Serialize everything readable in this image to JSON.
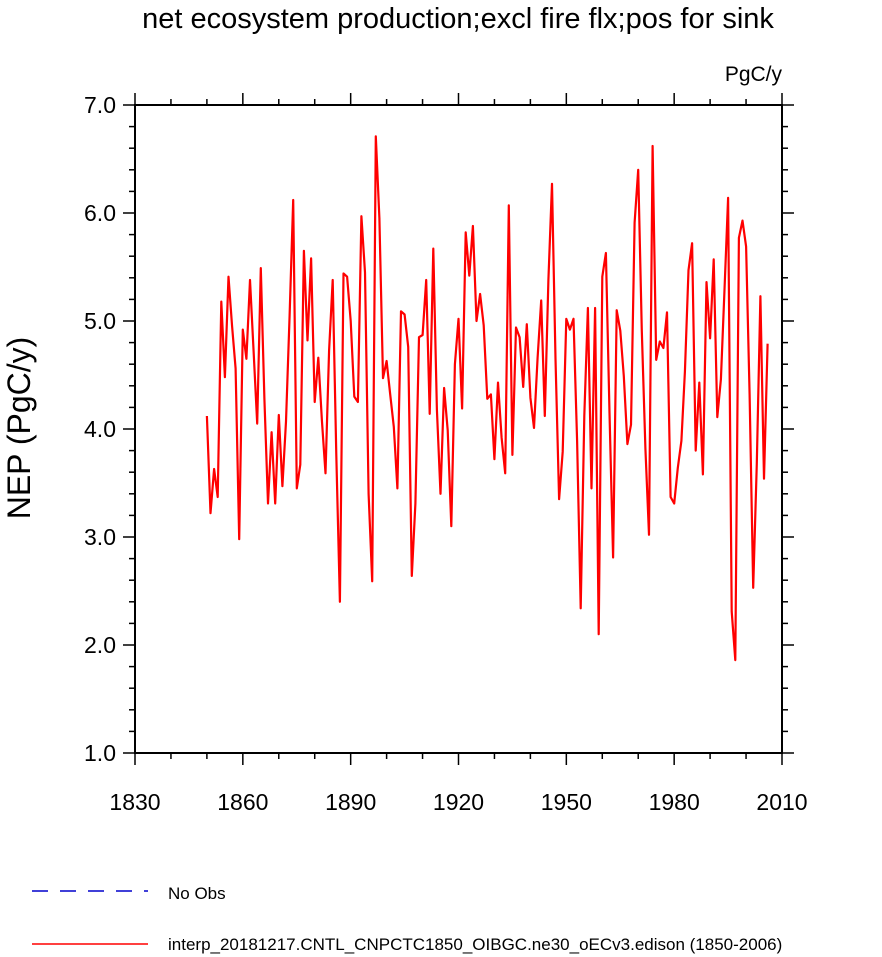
{
  "chart_data": {
    "type": "line",
    "title": "net ecosystem production;excl fire flx;pos for sink",
    "units": "PgC/y",
    "ylabel": "NEP  (PgC/y)",
    "xlabel": "",
    "xlim": [
      1830,
      2010
    ],
    "ylim": [
      1.0,
      7.0
    ],
    "xticks": [
      1830,
      1860,
      1890,
      1920,
      1950,
      1980,
      2010
    ],
    "xtick_labels": [
      "1830",
      "1860",
      "1890",
      "1920",
      "1950",
      "1980",
      "2010"
    ],
    "yticks": [
      1.0,
      2.0,
      3.0,
      4.0,
      5.0,
      6.0,
      7.0
    ],
    "ytick_labels": [
      "1.0",
      "2.0",
      "3.0",
      "4.0",
      "5.0",
      "6.0",
      "7.0"
    ],
    "legend_position": "bottom-left",
    "series": [
      {
        "name": "interp_20181217.CNTL_CNPCTC1850_OIBGC.ne30_oECv3.edison (1850-2006)",
        "color": "#ff0000",
        "style": "solid",
        "x_start": 1850,
        "x_step": 1,
        "values": [
          4.12,
          3.22,
          3.63,
          3.37,
          5.18,
          4.48,
          5.41,
          4.95,
          4.56,
          2.98,
          4.92,
          4.65,
          5.38,
          4.72,
          4.05,
          5.49,
          4.28,
          3.31,
          3.97,
          3.31,
          4.13,
          3.47,
          4.07,
          5.05,
          6.12,
          3.45,
          3.67,
          5.65,
          4.82,
          5.58,
          4.25,
          4.66,
          4.08,
          3.59,
          4.73,
          5.38,
          3.76,
          2.4,
          5.44,
          5.41,
          5.0,
          4.3,
          4.25,
          5.97,
          5.45,
          3.4,
          2.59,
          6.71,
          5.95,
          4.47,
          4.63,
          4.32,
          4.02,
          3.45,
          5.09,
          5.06,
          4.76,
          2.64,
          3.31,
          4.85,
          4.87,
          5.38,
          4.14,
          5.67,
          4.18,
          3.4,
          4.38,
          3.99,
          3.1,
          4.6,
          5.02,
          4.19,
          5.82,
          5.42,
          5.88,
          5.0,
          5.25,
          4.96,
          4.28,
          4.32,
          3.72,
          4.43,
          3.92,
          3.59,
          6.07,
          3.76,
          4.94,
          4.85,
          4.39,
          4.97,
          4.29,
          4.01,
          4.66,
          5.19,
          4.12,
          5.38,
          6.27,
          4.65,
          3.35,
          3.79,
          5.02,
          4.92,
          5.02,
          3.89,
          2.34,
          4.12,
          5.12,
          3.45,
          5.12,
          2.1,
          5.41,
          5.63,
          4.15,
          2.81,
          5.1,
          4.91,
          4.49,
          3.86,
          4.04,
          5.91,
          6.4,
          4.91,
          3.82,
          3.02,
          6.62,
          4.64,
          4.81,
          4.75,
          5.08,
          3.37,
          3.31,
          3.64,
          3.89,
          4.53,
          5.47,
          5.72,
          3.8,
          4.43,
          3.58,
          5.36,
          4.84,
          5.57,
          4.11,
          4.46,
          5.29,
          6.14,
          2.31,
          1.86,
          5.77,
          5.93,
          5.69,
          4.32,
          2.53,
          3.68,
          5.23,
          3.54,
          4.79
        ]
      }
    ]
  },
  "legend": {
    "items": [
      {
        "label": "No Obs",
        "color": "#0000cc",
        "style": "dashed"
      },
      {
        "label": "interp_20181217.CNTL_CNPCTC1850_OIBGC.ne30_oECv3.edison (1850-2006)",
        "color": "#ff0000",
        "style": "solid"
      }
    ]
  }
}
